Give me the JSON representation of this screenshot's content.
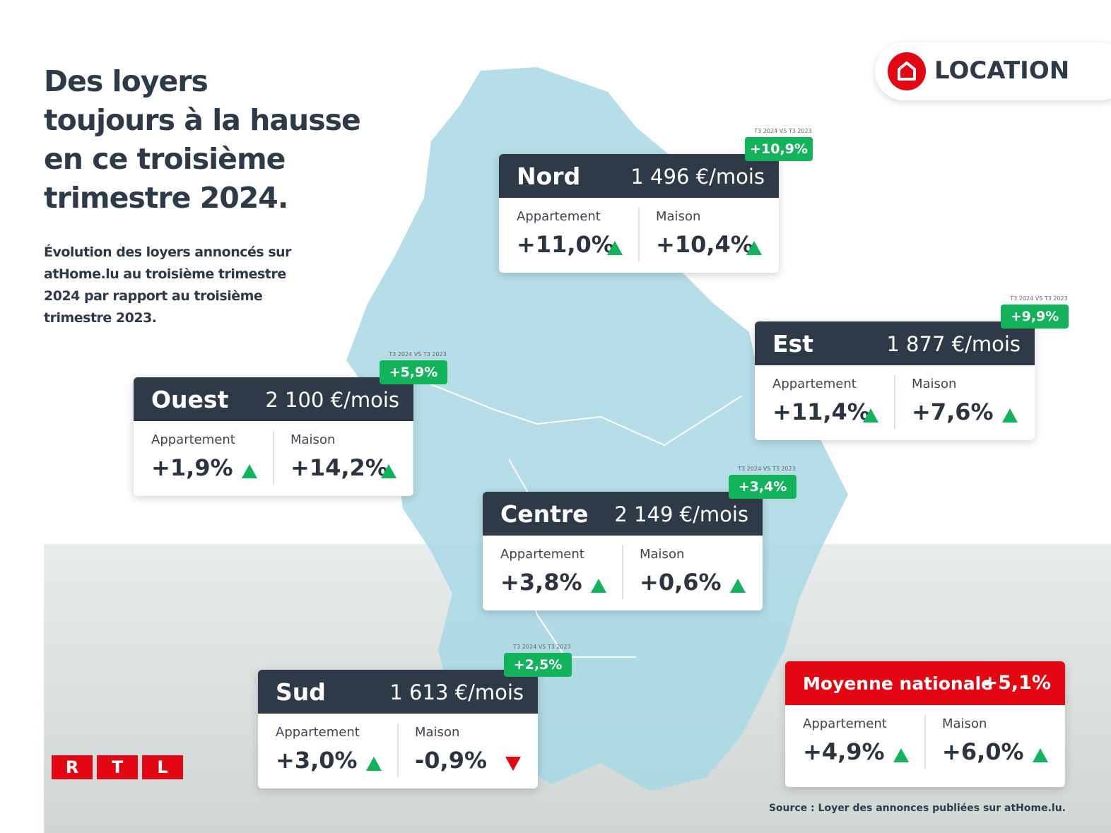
{
  "title_lines": [
    "Des loyers",
    "toujours à la hausse",
    "en ce troisième",
    "trimestre 2024."
  ],
  "subtitle_lines": [
    "Évolution des loyers annoncés sur",
    "atHome.lu au troisième trimestre",
    "2024 par rapport au troisième",
    "trimestre 2023."
  ],
  "badge": "LOCATION",
  "regions": [
    {
      "name": "Nord",
      "price": "1 496 €/mois",
      "comparison": "T3 2024 VS T3 2023",
      "change": "+10,9%",
      "apartment_label": "Appartement",
      "apartment_value": "+11,0%",
      "apartment_trend": "up",
      "house_label": "Maison",
      "house_value": "+10,4%",
      "house_trend": "up"
    },
    {
      "name": "Est",
      "price": "1 877 €/mois",
      "comparison": "T3 2024 VS T3 2023",
      "change": "+9,9%",
      "apartment_label": "Appartement",
      "apartment_value": "+11,4%",
      "apartment_trend": "up",
      "house_label": "Maison",
      "house_value": "+7,6%",
      "house_trend": "up"
    },
    {
      "name": "Ouest",
      "price": "2 100 €/mois",
      "comparison": "T3 2024 VS T3 2023",
      "change": "+5,9%",
      "apartment_label": "Appartement",
      "apartment_value": "+1,9%",
      "apartment_trend": "up",
      "house_label": "Maison",
      "house_value": "+14,2%",
      "house_trend": "up"
    },
    {
      "name": "Centre",
      "price": "2 149 €/mois",
      "comparison": "T3 2024 VS T3 2023",
      "change": "+3,4%",
      "apartment_label": "Appartement",
      "apartment_value": "+3,8%",
      "apartment_trend": "up",
      "house_label": "Maison",
      "house_value": "+0,6%",
      "house_trend": "up"
    },
    {
      "name": "Sud",
      "price": "1 613 €/mois",
      "comparison": "T3 2024 VS T3 2023",
      "change": "+2,5%",
      "apartment_label": "Appartement",
      "apartment_value": "+3,0%",
      "apartment_trend": "up",
      "house_label": "Maison",
      "house_value": "-0,9%",
      "house_trend": "down"
    }
  ],
  "national": {
    "name": "Moyenne nationale",
    "change": "+5,1%",
    "apartment_label": "Appartement",
    "apartment_value": "+4,9%",
    "apartment_trend": "up",
    "house_label": "Maison",
    "house_value": "+6,0%",
    "house_trend": "up"
  },
  "source": "Source : Loyer des annonces publiées sur atHome.lu.",
  "logo": [
    "R",
    "T",
    "L"
  ]
}
